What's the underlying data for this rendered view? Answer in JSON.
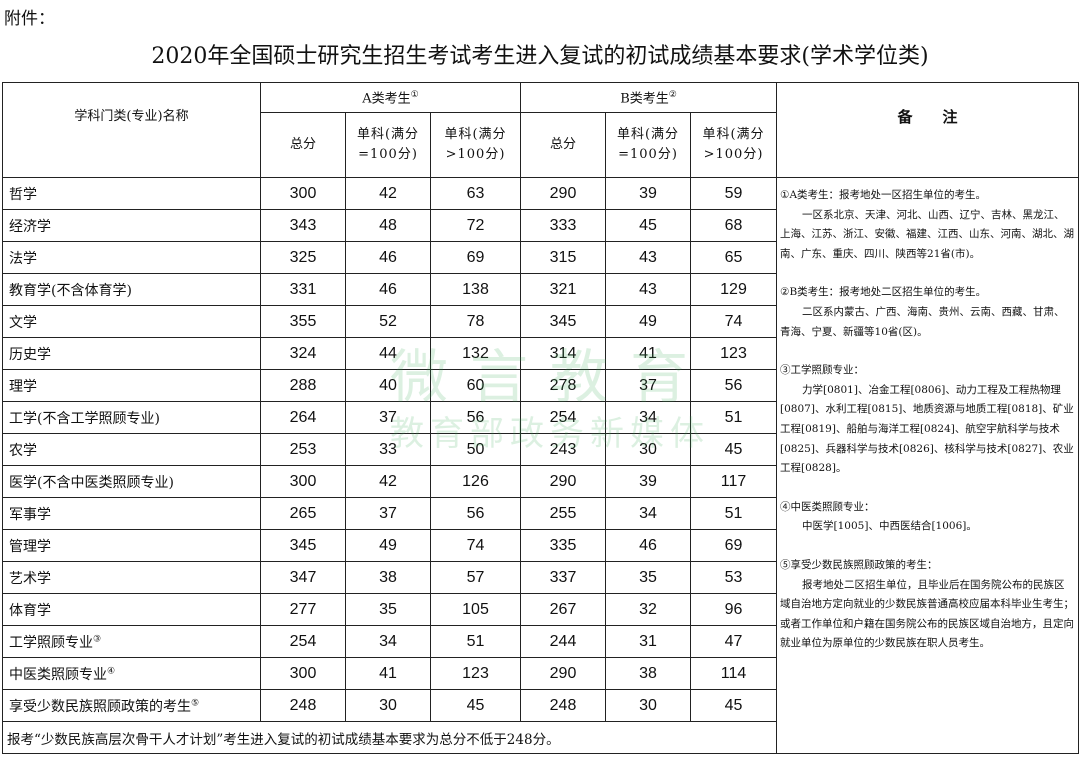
{
  "attachment_label": "附件：",
  "title": "2020年全国硕士研究生招生考试考生进入复试的初试成绩基本要求(学术学位类)",
  "header": {
    "category": "学科门类(专业)名称",
    "group_a": "A类考生",
    "group_a_mark": "①",
    "group_b": "B类考生",
    "group_b_mark": "②",
    "total": "总分",
    "single_100": "单科(满分=100分)",
    "single_over100": "单科(满分>100分)",
    "notes": "备　　注"
  },
  "rows": [
    {
      "name": "哲学",
      "mark": "",
      "a": [
        "300",
        "42",
        "63"
      ],
      "b": [
        "290",
        "39",
        "59"
      ]
    },
    {
      "name": "经济学",
      "mark": "",
      "a": [
        "343",
        "48",
        "72"
      ],
      "b": [
        "333",
        "45",
        "68"
      ]
    },
    {
      "name": "法学",
      "mark": "",
      "a": [
        "325",
        "46",
        "69"
      ],
      "b": [
        "315",
        "43",
        "65"
      ]
    },
    {
      "name": "教育学(不含体育学)",
      "mark": "",
      "a": [
        "331",
        "46",
        "138"
      ],
      "b": [
        "321",
        "43",
        "129"
      ]
    },
    {
      "name": "文学",
      "mark": "",
      "a": [
        "355",
        "52",
        "78"
      ],
      "b": [
        "345",
        "49",
        "74"
      ]
    },
    {
      "name": "历史学",
      "mark": "",
      "a": [
        "324",
        "44",
        "132"
      ],
      "b": [
        "314",
        "41",
        "123"
      ]
    },
    {
      "name": "理学",
      "mark": "",
      "a": [
        "288",
        "40",
        "60"
      ],
      "b": [
        "278",
        "37",
        "56"
      ]
    },
    {
      "name": "工学(不含工学照顾专业)",
      "mark": "",
      "a": [
        "264",
        "37",
        "56"
      ],
      "b": [
        "254",
        "34",
        "51"
      ]
    },
    {
      "name": "农学",
      "mark": "",
      "a": [
        "253",
        "33",
        "50"
      ],
      "b": [
        "243",
        "30",
        "45"
      ]
    },
    {
      "name": "医学(不含中医类照顾专业)",
      "mark": "",
      "a": [
        "300",
        "42",
        "126"
      ],
      "b": [
        "290",
        "39",
        "117"
      ]
    },
    {
      "name": "军事学",
      "mark": "",
      "a": [
        "265",
        "37",
        "56"
      ],
      "b": [
        "255",
        "34",
        "51"
      ]
    },
    {
      "name": "管理学",
      "mark": "",
      "a": [
        "345",
        "49",
        "74"
      ],
      "b": [
        "335",
        "46",
        "69"
      ]
    },
    {
      "name": "艺术学",
      "mark": "",
      "a": [
        "347",
        "38",
        "57"
      ],
      "b": [
        "337",
        "35",
        "53"
      ]
    },
    {
      "name": "体育学",
      "mark": "",
      "a": [
        "277",
        "35",
        "105"
      ],
      "b": [
        "267",
        "32",
        "96"
      ]
    },
    {
      "name": "工学照顾专业",
      "mark": "③",
      "a": [
        "254",
        "34",
        "51"
      ],
      "b": [
        "244",
        "31",
        "47"
      ]
    },
    {
      "name": "中医类照顾专业",
      "mark": "④",
      "a": [
        "300",
        "41",
        "123"
      ],
      "b": [
        "290",
        "38",
        "114"
      ]
    },
    {
      "name": "享受少数民族照顾政策的考生",
      "mark": "⑤",
      "a": [
        "248",
        "30",
        "45"
      ],
      "b": [
        "248",
        "30",
        "45"
      ]
    }
  ],
  "footer": "报考“少数民族高层次骨干人才计划”考生进入复试的初试成绩基本要求为总分不低于248分。",
  "notes": [
    {
      "head": "①A类考生：报考地处一区招生单位的考生。",
      "body": "一区系北京、天津、河北、山西、辽宁、吉林、黑龙江、上海、江苏、浙江、安徽、福建、江西、山东、河南、湖北、湖南、广东、重庆、四川、陕西等21省(市)。"
    },
    {
      "head": "②B类考生：报考地处二区招生单位的考生。",
      "body": "二区系内蒙古、广西、海南、贵州、云南、西藏、甘肃、青海、宁夏、新疆等10省(区)。"
    },
    {
      "head": "③工学照顾专业：",
      "body": "力学[0801]、冶金工程[0806]、动力工程及工程热物理[0807]、水利工程[0815]、地质资源与地质工程[0818]、矿业工程[0819]、船舶与海洋工程[0824]、航空宇航科学与技术[0825]、兵器科学与技术[0826]、核科学与技术[0827]、农业工程[0828]。"
    },
    {
      "head": "④中医类照顾专业：",
      "body": "中医学[1005]、中西医结合[1006]。"
    },
    {
      "head": "⑤享受少数民族照顾政策的考生：",
      "body": "报考地处二区招生单位，且毕业后在国务院公布的民族区域自治地方定向就业的少数民族普通高校应届本科毕业生考生；或者工作单位和户籍在国务院公布的民族区域自治地方，且定向就业单位为原单位的少数民族在职人员考生。"
    }
  ],
  "watermark": {
    "line1": "微言教育",
    "line2": "教育部政务新媒体"
  }
}
